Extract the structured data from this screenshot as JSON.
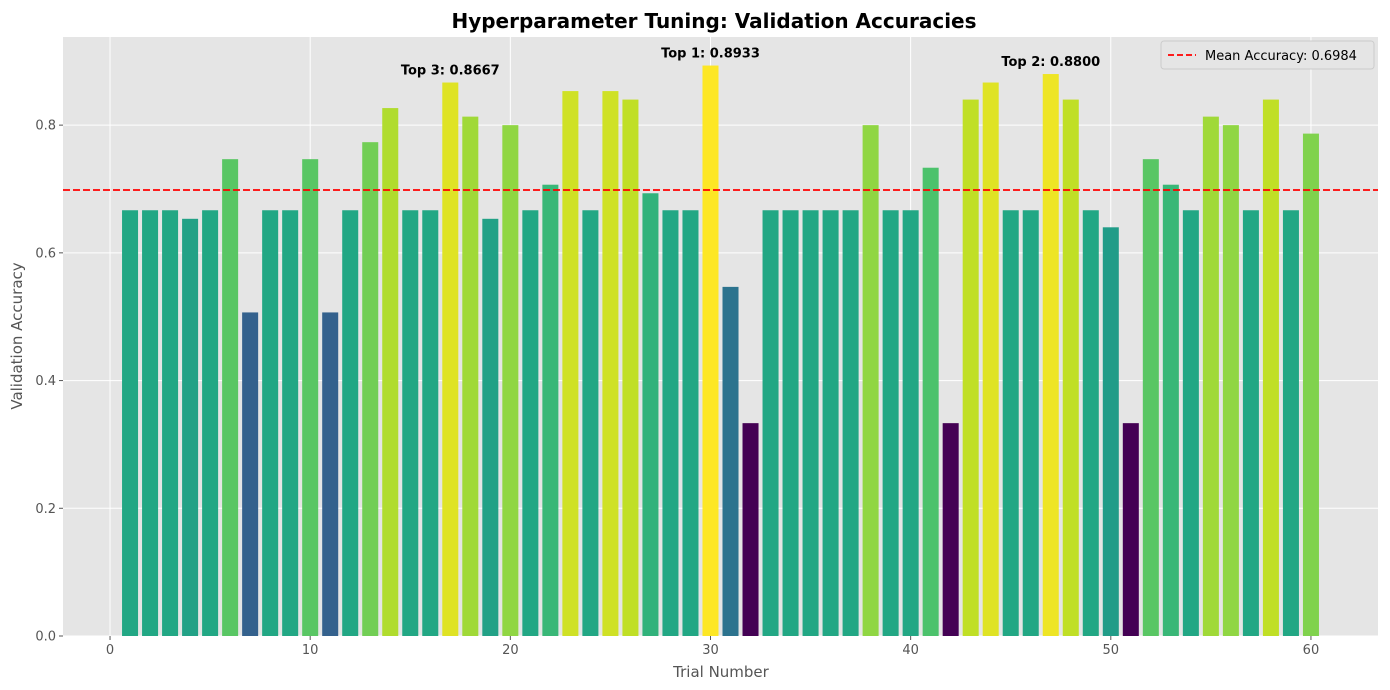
{
  "chart_data": {
    "type": "bar",
    "title": "Hyperparameter Tuning: Validation Accuracies",
    "xlabel": "Trial Number",
    "ylabel": "Validation Accuracy",
    "xlim": [
      -2.35,
      63.35
    ],
    "ylim": [
      0,
      0.938
    ],
    "xticks": [
      0,
      10,
      20,
      30,
      40,
      50,
      60
    ],
    "yticks": [
      0.0,
      0.2,
      0.4,
      0.6,
      0.8
    ],
    "ytick_labels": [
      "0.0",
      "0.2",
      "0.4",
      "0.6",
      "0.8"
    ],
    "grid": true,
    "legend_position": "top-right",
    "colormap": "viridis",
    "x": [
      1,
      2,
      3,
      4,
      5,
      6,
      7,
      8,
      9,
      10,
      11,
      12,
      13,
      14,
      15,
      16,
      17,
      18,
      19,
      20,
      21,
      22,
      23,
      24,
      25,
      26,
      27,
      28,
      29,
      30,
      31,
      32,
      33,
      34,
      35,
      36,
      37,
      38,
      39,
      40,
      41,
      42,
      43,
      44,
      45,
      46,
      47,
      48,
      49,
      50,
      51,
      52,
      53,
      54,
      55,
      56,
      57,
      58,
      59,
      60
    ],
    "values": [
      0.6667,
      0.6667,
      0.6667,
      0.6533,
      0.6667,
      0.7467,
      0.5067,
      0.6667,
      0.6667,
      0.7467,
      0.5067,
      0.6667,
      0.7733,
      0.8267,
      0.6667,
      0.6667,
      0.8667,
      0.8133,
      0.6533,
      0.8,
      0.6667,
      0.7067,
      0.8533,
      0.6667,
      0.8533,
      0.84,
      0.6933,
      0.6667,
      0.6667,
      0.8933,
      0.5467,
      0.3333,
      0.6667,
      0.6667,
      0.6667,
      0.6667,
      0.6667,
      0.8,
      0.6667,
      0.6667,
      0.7333,
      0.3333,
      0.84,
      0.8667,
      0.6667,
      0.6667,
      0.88,
      0.84,
      0.6667,
      0.64,
      0.3333,
      0.7467,
      0.7067,
      0.6667,
      0.8133,
      0.8,
      0.6667,
      0.84,
      0.6667,
      0.7867
    ],
    "mean_line": {
      "value": 0.6984,
      "label": "Mean Accuracy: 0.6984",
      "color": "#ff0000"
    },
    "annotations": [
      {
        "trial": 30,
        "value": 0.8933,
        "text": "Top 1: 0.8933"
      },
      {
        "trial": 47,
        "value": 0.88,
        "text": "Top 2: 0.8800"
      },
      {
        "trial": 17,
        "value": 0.8667,
        "text": "Top 3: 0.8667"
      }
    ]
  }
}
